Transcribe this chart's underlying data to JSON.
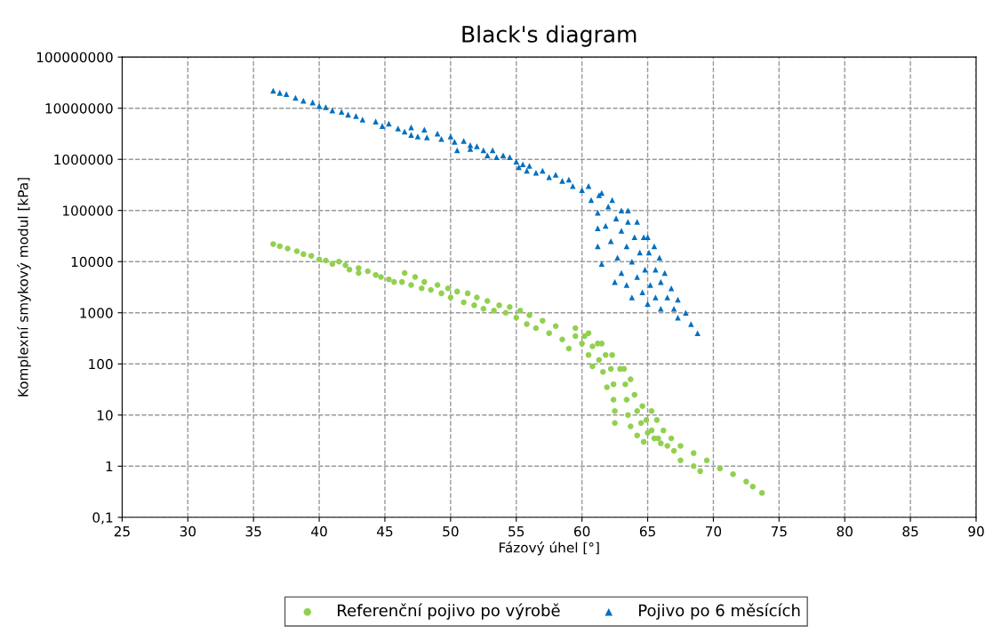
{
  "chart_data": {
    "type": "scatter",
    "title": "Black's diagram",
    "xlabel": "Fázový úhel [°]",
    "ylabel": "Komplexní smykový modul [kPa]",
    "log": "y",
    "grid": true,
    "legend": "bottom",
    "xlim": [
      25,
      90
    ],
    "xticks": [
      25,
      30,
      35,
      40,
      45,
      50,
      55,
      60,
      65,
      70,
      75,
      80,
      85,
      90
    ],
    "ylim": [
      0.1,
      100000000
    ],
    "yticks": [
      {
        "value": 0.1,
        "label": "0,1"
      },
      1,
      10,
      100,
      1000,
      10000,
      100000,
      1000000,
      10000000,
      100000000
    ],
    "series": [
      {
        "name": "Referenční pojivo po výrobě",
        "color": "#92d050",
        "marker": "circle",
        "x": [
          36.5,
          37,
          37.6,
          38.3,
          38.8,
          39.4,
          40,
          40.5,
          41,
          41.5,
          42,
          42.3,
          43,
          43,
          43.7,
          44.3,
          44.7,
          45.3,
          45.7,
          46.3,
          46.5,
          47,
          47.3,
          47.8,
          48,
          48.5,
          49,
          49.3,
          49.8,
          50,
          50.5,
          51,
          51.3,
          51.8,
          52,
          52.5,
          52.8,
          53.3,
          53.7,
          54.2,
          54.5,
          55,
          55.3,
          55.8,
          56,
          56.5,
          57,
          57.5,
          58,
          58.5,
          59,
          59.5,
          60,
          60.5,
          60.8,
          59.5,
          60.2,
          60.8,
          61.3,
          61.6,
          61.9,
          60.5,
          61.2,
          61.8,
          62.2,
          62.4,
          62.4,
          62.5,
          62.5,
          61.5,
          62.3,
          62.9,
          63.3,
          63.4,
          63.5,
          63.7,
          64.2,
          64.7,
          63.2,
          63.7,
          64,
          64.2,
          64.5,
          65,
          65.5,
          66,
          64.6,
          64.9,
          65.3,
          65.8,
          66.5,
          67,
          65.3,
          65.7,
          66.2,
          66.8,
          67.5,
          68.5,
          69.5,
          70.5,
          71.5,
          72.5,
          73,
          73.7,
          67.5,
          68.5,
          69
        ],
        "values": [
          22000,
          20000,
          18000,
          16000,
          14000,
          13000,
          11000,
          10500,
          9000,
          10000,
          8500,
          7000,
          7500,
          6000,
          6500,
          5500,
          5000,
          4500,
          4000,
          4000,
          6000,
          3500,
          5000,
          3000,
          4000,
          2800,
          3500,
          2400,
          3000,
          2000,
          2600,
          1600,
          2400,
          1400,
          2000,
          1200,
          1700,
          1100,
          1400,
          1000,
          1300,
          800,
          1100,
          600,
          900,
          500,
          700,
          400,
          550,
          300,
          200,
          350,
          250,
          150,
          90,
          500,
          350,
          220,
          120,
          70,
          35,
          400,
          250,
          150,
          80,
          40,
          20,
          12,
          7,
          250,
          150,
          80,
          40,
          20,
          10,
          6,
          4,
          3,
          80,
          50,
          25,
          12,
          7,
          4.5,
          3.5,
          2.8,
          15,
          8,
          5,
          3.5,
          2.5,
          2,
          12,
          8,
          5,
          3.5,
          2.5,
          1.8,
          1.3,
          0.9,
          0.7,
          0.5,
          0.4,
          0.3,
          1.3,
          1,
          0.8
        ]
      },
      {
        "name": "Pojivo po 6 měsících",
        "color": "#0070c0",
        "marker": "triangle",
        "x": [
          36.5,
          37,
          37.5,
          38.2,
          38.8,
          39.5,
          40,
          40.5,
          41,
          41.7,
          42.2,
          42.8,
          43.3,
          44.3,
          44.8,
          45.3,
          46,
          46.5,
          47,
          47,
          47.5,
          48,
          48.2,
          49,
          49.3,
          50,
          50.3,
          50.5,
          51,
          51.5,
          51.5,
          52,
          52.5,
          52.8,
          53.2,
          53.5,
          54,
          54.5,
          55,
          55.2,
          55.5,
          55.8,
          56,
          56.5,
          57,
          57.5,
          58,
          58.5,
          59,
          59.3,
          60,
          60.7,
          61.2,
          61.8,
          62.2,
          62.7,
          63,
          63.4,
          63.8,
          60.5,
          61.3,
          62,
          62.6,
          63,
          63.4,
          63.8,
          64.2,
          64.6,
          65,
          61.5,
          62.3,
          63,
          63.5,
          64,
          64.4,
          64.8,
          65.2,
          65.6,
          66,
          63.5,
          64.2,
          64.7,
          65.1,
          65.6,
          66,
          66.5,
          67,
          67.3,
          65,
          65.5,
          65.9,
          66.3,
          66.8,
          67.3,
          67.9,
          68.3,
          68.8,
          61.2,
          61.2,
          61.5,
          62.5
        ],
        "values": [
          22000000,
          20000000,
          19000000,
          16000000,
          14000000,
          13000000,
          11000000,
          10500000,
          9000000,
          8500000,
          7500000,
          7000000,
          6000000,
          5500000,
          4500000,
          5000000,
          4000000,
          3500000,
          4200000,
          3000000,
          2800000,
          3800000,
          2700000,
          3200000,
          2500000,
          2800000,
          2200000,
          1500000,
          2300000,
          1900000,
          1600000,
          1800000,
          1500000,
          1200000,
          1500000,
          1100000,
          1200000,
          1100000,
          900000,
          700000,
          800000,
          600000,
          750000,
          550000,
          600000,
          450000,
          500000,
          380000,
          400000,
          300000,
          250000,
          160000,
          90000,
          50000,
          25000,
          12000,
          6000,
          3500,
          2000,
          300000,
          200000,
          120000,
          70000,
          40000,
          20000,
          10000,
          5000,
          2500,
          1500,
          220000,
          160000,
          100000,
          60000,
          30000,
          15000,
          7000,
          3500,
          2000,
          1200,
          100000,
          60000,
          30000,
          15000,
          7000,
          4000,
          2000,
          1200,
          800,
          30000,
          20000,
          12000,
          6000,
          3000,
          1800,
          1000,
          600,
          400,
          45000,
          20000,
          9000,
          4000
        ]
      }
    ]
  }
}
